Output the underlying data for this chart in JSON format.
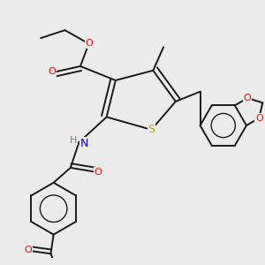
{
  "background_color": "#ebebeb",
  "atom_colors": {
    "S": "#c8a800",
    "O": "#ff0000",
    "N": "#0000cd",
    "H": "#7a7a7a",
    "C": "#1a1a1a"
  },
  "bond_lw": 1.4,
  "figsize": [
    3.0,
    3.0
  ],
  "dpi": 100
}
